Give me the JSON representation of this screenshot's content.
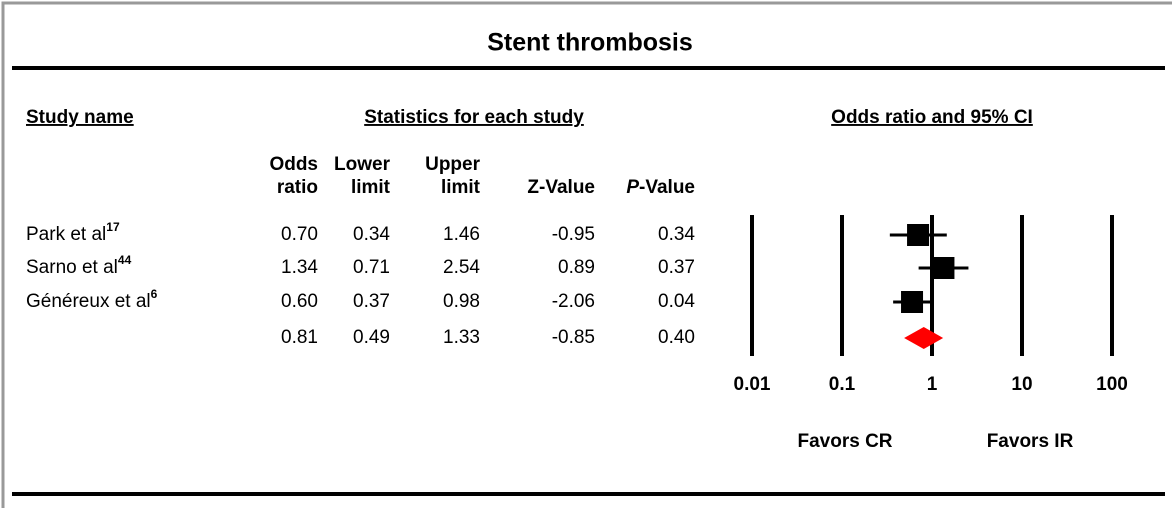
{
  "chart_data": {
    "type": "forest",
    "title": "Stent thrombosis",
    "headers": {
      "study": "Study name",
      "stats": "Statistics for each study",
      "plot": "Odds ratio and 95% CI"
    },
    "studies": [
      "Park et al",
      "Sarno et al",
      "Généreux et al",
      null
    ],
    "refs": [
      "17",
      "44",
      "6",
      null
    ],
    "columns": [
      {
        "header": [
          "Odds",
          "ratio"
        ],
        "values": [
          0.7,
          1.34,
          0.6,
          0.81
        ],
        "value_labels": [
          "0.70",
          "1.34",
          "0.60",
          "0.81"
        ]
      },
      {
        "header": [
          "Lower",
          "limit"
        ],
        "values": [
          0.34,
          0.71,
          0.37,
          0.49
        ],
        "value_labels": [
          "0.34",
          "0.71",
          "0.37",
          "0.49"
        ]
      },
      {
        "header": [
          "Upper",
          "limit"
        ],
        "values": [
          1.46,
          2.54,
          0.98,
          1.33
        ],
        "value_labels": [
          "1.46",
          "2.54",
          "0.98",
          "1.33"
        ]
      },
      {
        "header": [
          "Z-Value"
        ],
        "values": [
          -0.95,
          0.89,
          -2.06,
          -0.85
        ],
        "value_labels": [
          "-0.95",
          "0.89",
          "-2.06",
          "-0.85"
        ]
      },
      {
        "header_italic": "P",
        "header": [
          "-Value"
        ],
        "values": [
          0.34,
          0.37,
          0.04,
          0.4
        ],
        "value_labels": [
          "0.34",
          "0.37",
          "0.04",
          "0.40"
        ]
      }
    ],
    "xscale": "log",
    "xlim": [
      0.01,
      100
    ],
    "xticks": [
      0.01,
      0.1,
      1,
      10,
      100
    ],
    "favors": [
      "Favors CR",
      "Favors IR"
    ],
    "color": "#000000",
    "summary_color": "#ff0000"
  }
}
